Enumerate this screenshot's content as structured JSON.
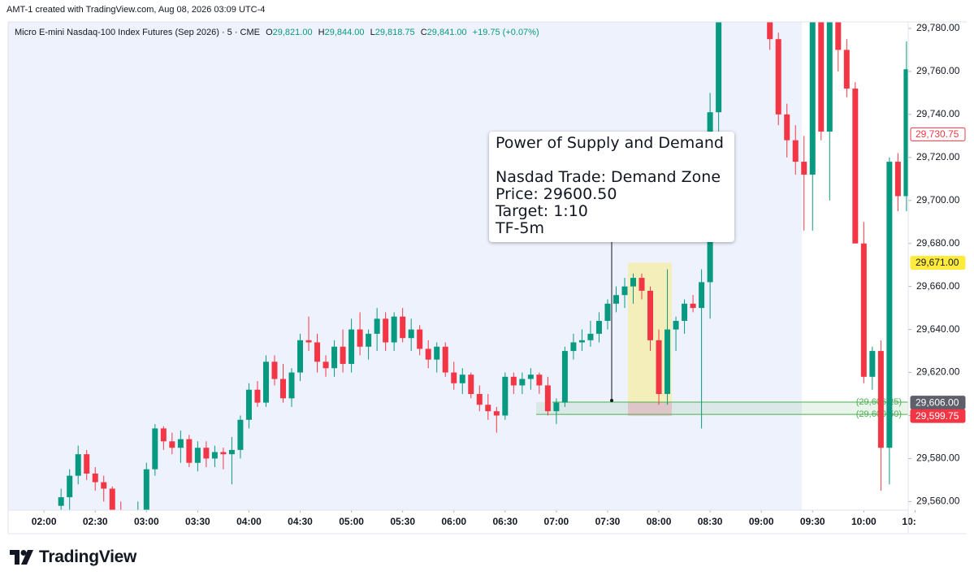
{
  "header": {
    "author_line": "AMT-1 created with TradingView.com, Aug 08, 2026 03:09 UTC-4",
    "symbol": "Micro E-mini Nasdaq-100 Index Futures (Sep 2026) · 5 · CME",
    "ohlc": [
      {
        "key": "O",
        "value": "29,821.00"
      },
      {
        "key": "H",
        "value": "29,844.00"
      },
      {
        "key": "L",
        "value": "29,818.75"
      },
      {
        "key": "C",
        "value": "29,841.00"
      }
    ],
    "change": "+19.75 (+0.07%)"
  },
  "annotation": {
    "title": "Power of Supply and Demand",
    "lines": [
      "Nasdad Trade: Demand Zone",
      "Price: 29600.50",
      "Target: 1:10",
      "TF-5m"
    ]
  },
  "footer": {
    "brand": "TradingView"
  },
  "chart_data": {
    "type": "candlestick",
    "up_color": "#089981",
    "down_color": "#f23645",
    "grid": false,
    "x": [
      "02:10",
      "02:15",
      "02:20",
      "02:25",
      "02:30",
      "02:35",
      "02:40",
      "02:45",
      "02:50",
      "02:55",
      "03:00",
      "03:05",
      "03:10",
      "03:15",
      "03:20",
      "03:25",
      "03:30",
      "03:35",
      "03:40",
      "03:45",
      "03:50",
      "03:55",
      "04:00",
      "04:05",
      "04:10",
      "04:15",
      "04:20",
      "04:25",
      "04:30",
      "04:35",
      "04:40",
      "04:45",
      "04:50",
      "04:55",
      "05:00",
      "05:05",
      "05:10",
      "05:15",
      "05:20",
      "05:25",
      "05:30",
      "05:35",
      "05:40",
      "05:45",
      "05:50",
      "05:55",
      "06:00",
      "06:05",
      "06:10",
      "06:15",
      "06:20",
      "06:25",
      "06:30",
      "06:35",
      "06:40",
      "06:45",
      "06:50",
      "06:55",
      "07:00",
      "07:05",
      "07:10",
      "07:15",
      "07:20",
      "07:25",
      "07:30",
      "07:35",
      "07:40",
      "07:45",
      "07:50",
      "07:55",
      "08:00",
      "08:05",
      "08:10",
      "08:15",
      "08:20",
      "08:25",
      "08:30",
      "08:35",
      "08:40",
      "08:45",
      "08:50",
      "08:55",
      "09:00",
      "09:05",
      "09:10",
      "09:15",
      "09:20",
      "09:25",
      "09:30",
      "09:35",
      "09:40",
      "09:45",
      "09:50",
      "09:55",
      "10:00",
      "10:05",
      "10:10",
      "10:15",
      "10:20",
      "10:25"
    ],
    "open": [
      29558,
      29562,
      29572,
      29582,
      29573,
      29569,
      29566,
      29555,
      29552,
      29545,
      29556,
      29575,
      29594,
      29588,
      29585,
      29589,
      29578,
      29585,
      29580,
      29583,
      29582,
      29584,
      29598,
      29612,
      29606,
      29625,
      29617,
      29608,
      29620,
      29635,
      29634,
      29625,
      29622,
      29632,
      29624,
      29640,
      29632,
      29638,
      29645,
      29634,
      29646,
      29636,
      29640,
      29631,
      29626,
      29632,
      29620,
      29615,
      29619,
      29610,
      29605,
      29602,
      29600,
      29618,
      29614,
      29617,
      29619,
      29614,
      29602,
      29606,
      29630,
      29634,
      29635,
      29638,
      29644,
      29652,
      29656,
      29660,
      29664,
      29658,
      29635,
      29610,
      29640,
      29644,
      29652,
      29650,
      29662,
      29741,
      29795,
      29820,
      29835,
      29830,
      29810,
      29790,
      29775,
      29740,
      29728,
      29718,
      29712,
      29795,
      29732,
      29795,
      29770,
      29752,
      29680,
      29618,
      29630,
      29585,
      29718,
      29702
    ],
    "high": [
      29566,
      29575,
      29586,
      29584,
      29576,
      29572,
      29567,
      29560,
      29556,
      29560,
      29578,
      29596,
      29595,
      29592,
      29593,
      29591,
      29588,
      29588,
      29586,
      29585,
      29590,
      29600,
      29615,
      29616,
      29628,
      29628,
      29624,
      29622,
      29638,
      29646,
      29638,
      29628,
      29635,
      29640,
      29645,
      29648,
      29640,
      29650,
      29648,
      29648,
      29650,
      29645,
      29642,
      29635,
      29634,
      29634,
      29625,
      29622,
      29620,
      29614,
      29610,
      29604,
      29620,
      29620,
      29620,
      29622,
      29620,
      29618,
      29608,
      29632,
      29638,
      29640,
      29644,
      29648,
      29654,
      29660,
      29664,
      29666,
      29666,
      29660,
      29640,
      29668,
      29646,
      29654,
      29656,
      29668,
      29750,
      29800,
      29830,
      29840,
      29845,
      29840,
      29815,
      29795,
      29778,
      29745,
      29735,
      29730,
      29800,
      29805,
      29800,
      29800,
      29775,
      29755,
      29690,
      29632,
      29635,
      29720,
      29722,
      29774
    ],
    "low": [
      29550,
      29555,
      29568,
      29570,
      29565,
      29560,
      29552,
      29548,
      29540,
      29540,
      29550,
      29572,
      29584,
      29582,
      29578,
      29576,
      29574,
      29576,
      29576,
      29575,
      29568,
      29580,
      29594,
      29604,
      29604,
      29614,
      29606,
      29604,
      29616,
      29630,
      29620,
      29618,
      29618,
      29620,
      29620,
      29628,
      29626,
      29630,
      29630,
      29630,
      29634,
      29630,
      29628,
      29622,
      29620,
      29618,
      29612,
      29610,
      29608,
      29602,
      29598,
      29592,
      29598,
      29610,
      29610,
      29612,
      29610,
      29600,
      29596,
      29604,
      29626,
      29630,
      29632,
      29634,
      29640,
      29648,
      29650,
      29652,
      29654,
      29630,
      29605,
      29605,
      29630,
      29638,
      29648,
      29594,
      29645,
      29730,
      29790,
      29815,
      29820,
      29800,
      29785,
      29770,
      29735,
      29720,
      29712,
      29686,
      29686,
      29728,
      29700,
      29760,
      29748,
      29680,
      29615,
      29612,
      29565,
      29568,
      29695,
      29695
    ],
    "close": [
      29562,
      29572,
      29582,
      29573,
      29569,
      29566,
      29555,
      29552,
      29545,
      29556,
      29575,
      29594,
      29588,
      29585,
      29589,
      29578,
      29585,
      29580,
      29583,
      29582,
      29584,
      29598,
      29612,
      29606,
      29625,
      29617,
      29608,
      29620,
      29635,
      29634,
      29625,
      29622,
      29632,
      29624,
      29640,
      29632,
      29638,
      29645,
      29634,
      29646,
      29636,
      29640,
      29631,
      29626,
      29632,
      29620,
      29615,
      29619,
      29610,
      29605,
      29602,
      29600,
      29618,
      29614,
      29617,
      29619,
      29614,
      29602,
      29606,
      29630,
      29634,
      29635,
      29638,
      29644,
      29652,
      29656,
      29660,
      29664,
      29658,
      29635,
      29610,
      29640,
      29644,
      29652,
      29650,
      29662,
      29741,
      29795,
      29820,
      29835,
      29830,
      29810,
      29790,
      29775,
      29740,
      29728,
      29718,
      29712,
      29795,
      29732,
      29795,
      29770,
      29752,
      29680,
      29618,
      29630,
      29585,
      29718,
      29702,
      29761
    ],
    "xlim": [
      "01:39",
      "10:26"
    ],
    "xticks": [
      "02:00",
      "02:30",
      "03:00",
      "03:30",
      "04:00",
      "04:30",
      "05:00",
      "05:30",
      "06:00",
      "06:30",
      "07:00",
      "07:30",
      "08:00",
      "08:30",
      "09:00",
      "09:30",
      "10:00",
      {
        "value": "10:30",
        "label": "10:"
      }
    ],
    "ylim": [
      29556,
      29783
    ],
    "yticks": [
      {
        "value": 29560,
        "label": "29,560.00"
      },
      {
        "value": 29580,
        "label": "29,580.00"
      },
      {
        "value": 29600,
        "label": "29,600.00"
      },
      {
        "value": 29620,
        "label": "29,620.00"
      },
      {
        "value": 29640,
        "label": "29,640.00"
      },
      {
        "value": 29660,
        "label": "29,660.00"
      },
      {
        "value": 29680,
        "label": "29,680.00"
      },
      {
        "value": 29700,
        "label": "29,700.00"
      },
      {
        "value": 29720,
        "label": "29,720.00"
      },
      {
        "value": 29740,
        "label": "29,740.00"
      },
      {
        "value": 29760,
        "label": "29,760.00"
      },
      {
        "value": 29780,
        "label": "29,780.00"
      }
    ],
    "levels": [
      {
        "value": 29606.25,
        "label": "(29,606.25)",
        "color": "#4caf50"
      },
      {
        "value": 29600.5,
        "label": "(29,600.50)",
        "color": "#4caf50"
      }
    ],
    "price_labels": [
      {
        "value": 29730.75,
        "label": "29,730.75",
        "bg": "#ffffff",
        "fg": "#f23645",
        "border": "#f23645"
      },
      {
        "value": 29671,
        "label": "29,671.00",
        "bg": "#ffeb3b",
        "fg": "#131722",
        "border": "#ffeb3b"
      },
      {
        "value": 29606,
        "label": "29,606.00",
        "bg": "#5d606b",
        "fg": "#ffffff",
        "border": "#5d606b"
      },
      {
        "value": 29599.75,
        "label": "29,599.75",
        "bg": "#f23645",
        "fg": "#ffffff",
        "border": "#f23645"
      }
    ]
  }
}
